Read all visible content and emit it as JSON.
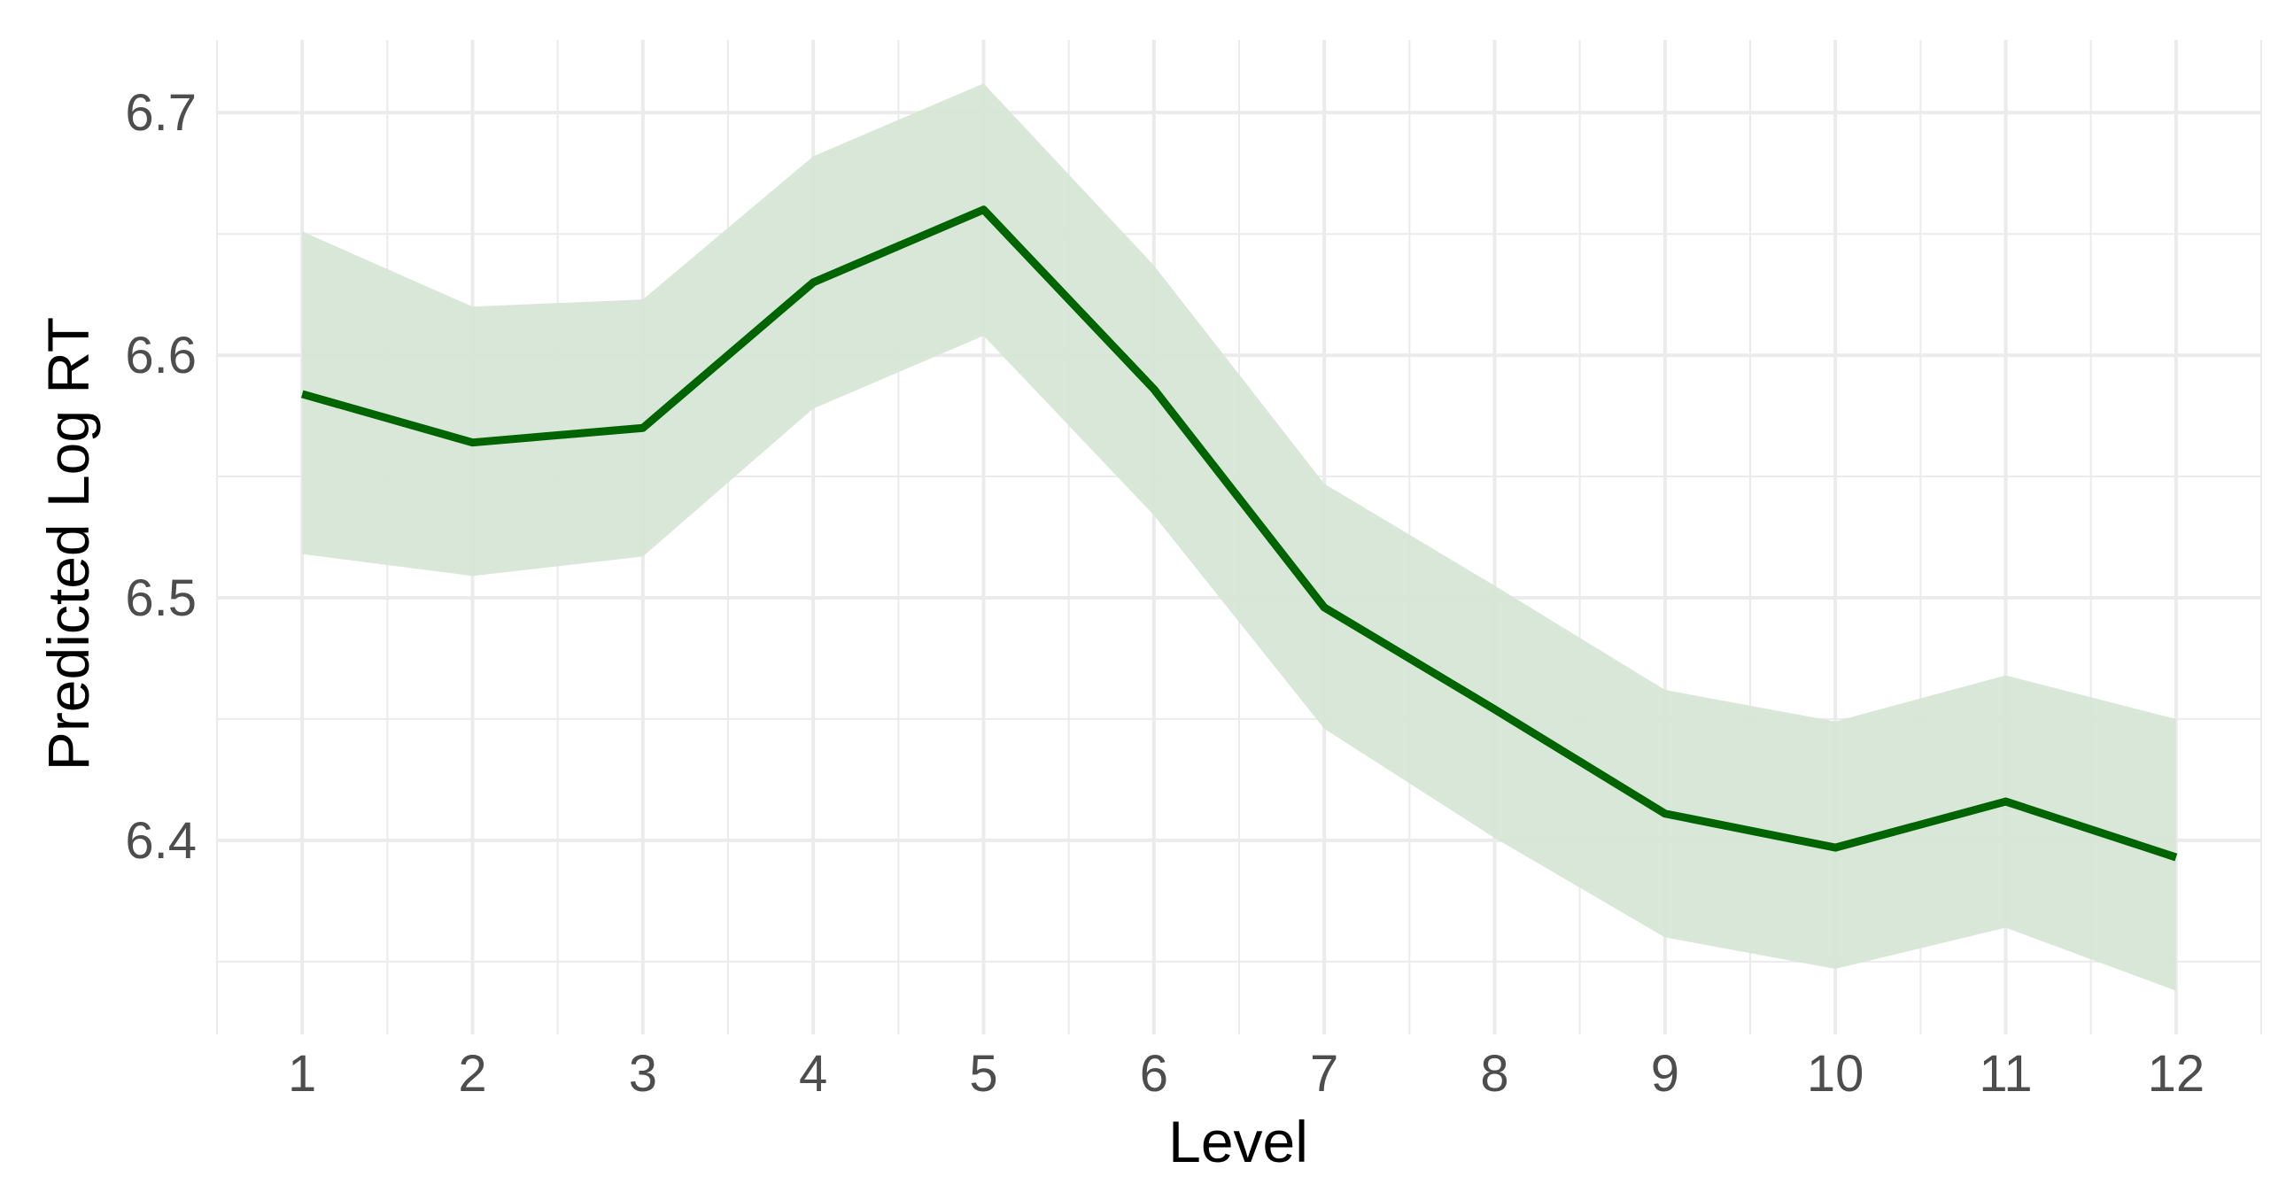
{
  "chart_data": {
    "type": "line",
    "title": "",
    "xlabel": "Level",
    "ylabel": "Predicted Log RT",
    "x": [
      1,
      2,
      3,
      4,
      5,
      6,
      7,
      8,
      9,
      10,
      11,
      12
    ],
    "series": [
      {
        "values": [
          6.584,
          6.564,
          6.57,
          6.63,
          6.66,
          6.586,
          6.496,
          6.454,
          6.411,
          6.397,
          6.416,
          6.393
        ],
        "lower": [
          6.518,
          6.509,
          6.517,
          6.578,
          6.608,
          6.534,
          6.446,
          6.401,
          6.36,
          6.347,
          6.364,
          6.338
        ],
        "upper": [
          6.651,
          6.62,
          6.623,
          6.682,
          6.712,
          6.637,
          6.547,
          6.505,
          6.462,
          6.449,
          6.468,
          6.45
        ],
        "line_color": "#006400",
        "ribbon_color": "#d6e6d6"
      }
    ],
    "xticks": [
      "1",
      "2",
      "3",
      "4",
      "5",
      "6",
      "7",
      "8",
      "9",
      "10",
      "11",
      "12"
    ],
    "yticks": [
      "6.4",
      "6.5",
      "6.6",
      "6.7"
    ],
    "xlim": [
      0.5,
      12.5
    ],
    "ylim": [
      6.32,
      6.73
    ],
    "grid": true,
    "grid_color": "#ebebeb",
    "legend": "none"
  }
}
